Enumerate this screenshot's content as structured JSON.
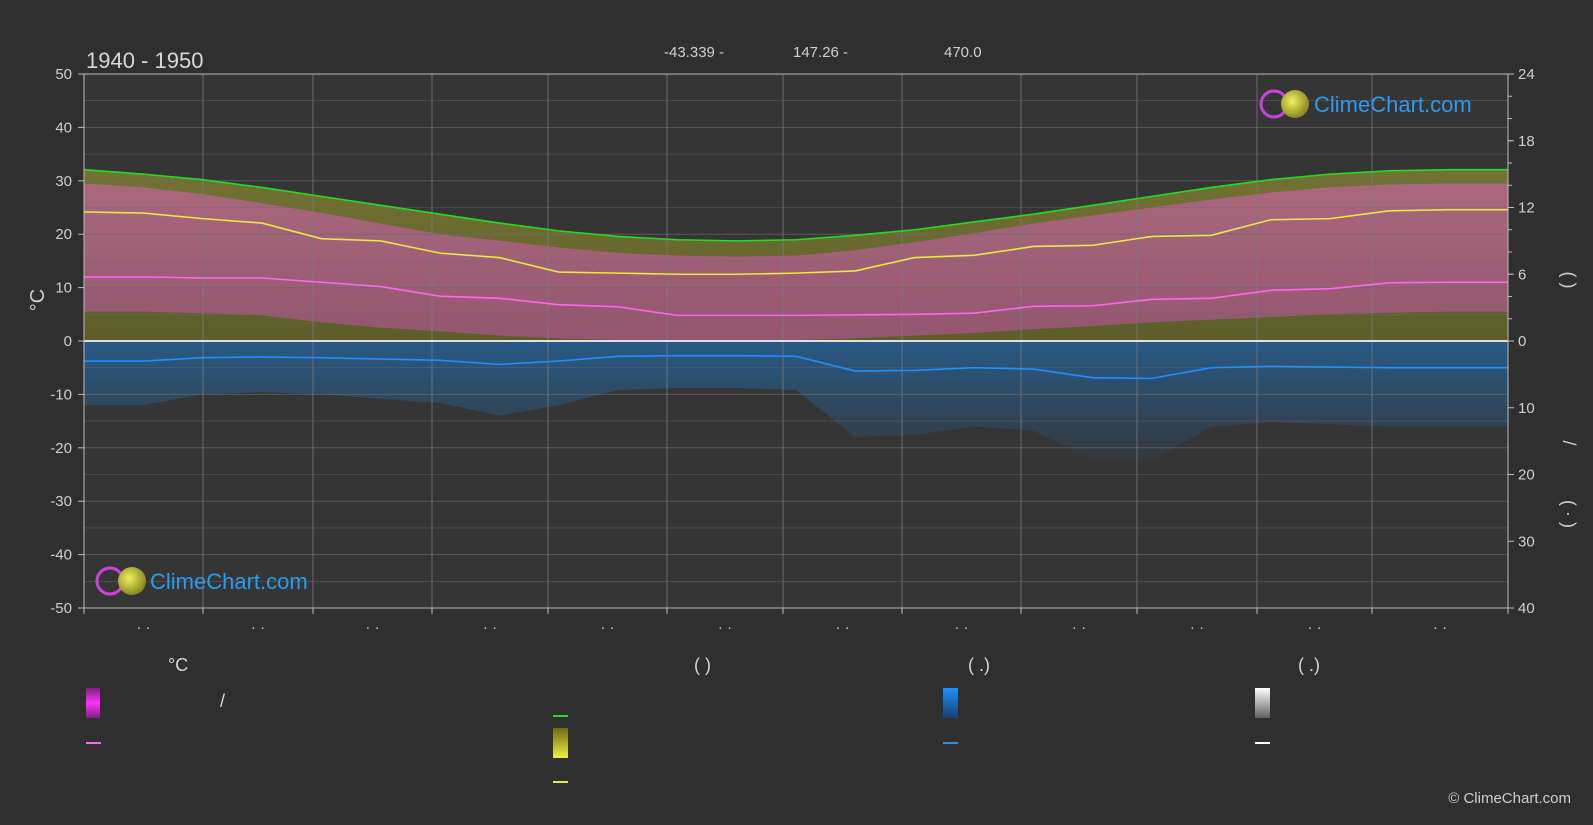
{
  "period_title": "1940 - 1950",
  "coords": {
    "lat": "-43.339 -",
    "lon": "147.26 -",
    "elev": "470.0"
  },
  "left_axis_unit": "°C",
  "right_axis_label_hours": "(        )",
  "right_axis_label_precip": "/",
  "right_axis_label_precip2": "(  ·  )",
  "brand": "ClimeChart.com",
  "copyright": "© ClimeChart.com",
  "month_labels": [
    "· ·",
    "· ·",
    "· ·",
    "· ·",
    "· ·",
    "· ·",
    "· ·",
    "· ·",
    "· ·",
    "· ·",
    "· ·",
    "· ·"
  ],
  "legend": {
    "col1_header": "°C",
    "col2_header": "(            )",
    "col3_header": "(    .)",
    "col4_header": "(    .)",
    "col1_row1": "/",
    "col1_row2": "",
    "col2_row1": "",
    "col2_row2": "",
    "col2_row3": "",
    "col3_row1": "",
    "col3_row2": "",
    "col4_row1": "",
    "col4_row2": ""
  },
  "colors": {
    "background": "#2f2f2f",
    "daylight": "#22dd22",
    "sunshine": "#e8e84a",
    "temp_mean": "#ff66ee",
    "temp_range": "#ff44dd",
    "precip": "#1e90ff",
    "snow": "#ffffff",
    "brand_blue": "#2a9cf0"
  },
  "chart_data": {
    "type": "line",
    "x": [
      1,
      2,
      3,
      4,
      5,
      6,
      7,
      8,
      9,
      10,
      11,
      12,
      13,
      14,
      15,
      16,
      17,
      18,
      19,
      20,
      21,
      22,
      23,
      24,
      25
    ],
    "left_ylim": [
      -50,
      50
    ],
    "left_yticks": [
      50,
      40,
      30,
      20,
      10,
      0,
      -10,
      -20,
      -30,
      -40,
      -50
    ],
    "right_top_ylim": [
      0,
      24
    ],
    "right_top_ticks": [
      24,
      18,
      12,
      6,
      0
    ],
    "right_bottom_ylim": [
      0,
      40
    ],
    "right_bottom_ticks": [
      10,
      20,
      30,
      40
    ],
    "grid": true,
    "series": [
      {
        "key": "daylight",
        "values": [
          15.4,
          15.0,
          14.5,
          13.8,
          13.0,
          12.2,
          11.4,
          10.6,
          9.9,
          9.4,
          9.1,
          9.0,
          9.1,
          9.5,
          10.0,
          10.7,
          11.4,
          12.2,
          13.0,
          13.8,
          14.5,
          15.0,
          15.3,
          15.4,
          15.4
        ]
      },
      {
        "key": "sunshine",
        "values": [
          11.6,
          11.5,
          11.0,
          10.6,
          9.2,
          9.0,
          7.9,
          7.5,
          6.2,
          6.1,
          6.0,
          6.0,
          6.1,
          6.3,
          7.5,
          7.7,
          8.5,
          8.6,
          9.4,
          9.5,
          10.9,
          11.0,
          11.7,
          11.8,
          11.8
        ]
      },
      {
        "key": "temp_mean",
        "values": [
          12.0,
          12.0,
          11.8,
          11.8,
          11.0,
          10.2,
          8.4,
          8.0,
          6.8,
          6.4,
          4.8,
          4.8,
          4.8,
          4.9,
          5.0,
          5.2,
          6.5,
          6.6,
          7.8,
          8.0,
          9.5,
          9.8,
          10.9,
          11.0,
          11.0
        ]
      },
      {
        "key": "precip",
        "values": [
          3.0,
          3.0,
          2.5,
          2.4,
          2.5,
          2.7,
          2.9,
          3.5,
          3.0,
          2.3,
          2.2,
          2.2,
          2.3,
          4.5,
          4.4,
          4.0,
          4.2,
          5.5,
          5.6,
          4.0,
          3.8,
          3.9,
          4.0,
          4.0,
          4.0
        ]
      },
      {
        "key": "temp_max_band",
        "values": [
          29.5,
          28.8,
          27.5,
          25.8,
          24.0,
          22.0,
          20.0,
          18.8,
          17.5,
          16.5,
          16.0,
          15.8,
          16.0,
          17.0,
          18.5,
          20.2,
          22.0,
          23.5,
          25.0,
          26.5,
          27.8,
          28.8,
          29.3,
          29.5,
          29.5
        ]
      },
      {
        "key": "temp_min_band",
        "values": [
          5.5,
          5.5,
          5.2,
          4.8,
          3.5,
          2.5,
          1.8,
          1.0,
          0.5,
          0.2,
          0.0,
          0.0,
          0.2,
          0.5,
          1.0,
          1.5,
          2.2,
          2.8,
          3.5,
          4.0,
          4.5,
          5.0,
          5.3,
          5.5,
          5.5
        ]
      }
    ]
  }
}
